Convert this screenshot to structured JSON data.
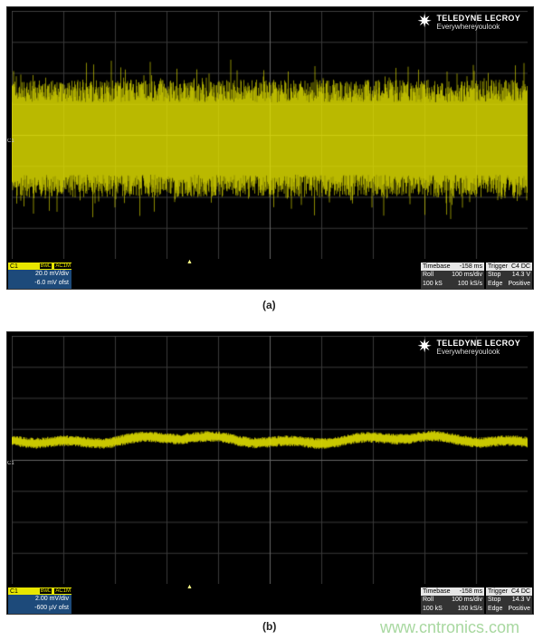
{
  "brand": {
    "name": "TELEDYNE LECROY",
    "tagline": "Everywhereyoulook"
  },
  "colors": {
    "trace": "#e8e600",
    "grid": "#3a3a3a",
    "channel_box": "#1d4a7a"
  },
  "panels": [
    {
      "caption": "(a)",
      "channel": "C1",
      "bwl": "BwL",
      "coupling": "AC1M",
      "vdiv": "20.0 mV/div",
      "offset": "-6.0 mV ofst",
      "timebase_label": "Timebase",
      "timebase_value": "-158 ms",
      "mode": "Roll",
      "tdiv": "100 ms/div",
      "samples": "100 kS",
      "rate": "100 kS/s",
      "trigger_label": "Trigger",
      "trigger_ch": "C4",
      "trigger_coupling": "DC",
      "trigger_state": "Stop",
      "trigger_level": "14.3 V",
      "trigger_type": "Edge",
      "trigger_slope": "Positive"
    },
    {
      "caption": "(b)",
      "channel": "C1",
      "bwl": "BwL",
      "coupling": "AC1M",
      "vdiv": "2.00 mV/div",
      "offset": "-600 µV ofst",
      "timebase_label": "Timebase",
      "timebase_value": "-158 ms",
      "mode": "Roll",
      "tdiv": "100 ms/div",
      "samples": "100 kS",
      "rate": "100 kS/s",
      "trigger_label": "Trigger",
      "trigger_ch": "C4",
      "trigger_coupling": "DC",
      "trigger_state": "Stop",
      "trigger_level": "14.3 V",
      "trigger_type": "Edge",
      "trigger_slope": "Positive"
    }
  ],
  "watermark": "www.cntronics.com"
}
